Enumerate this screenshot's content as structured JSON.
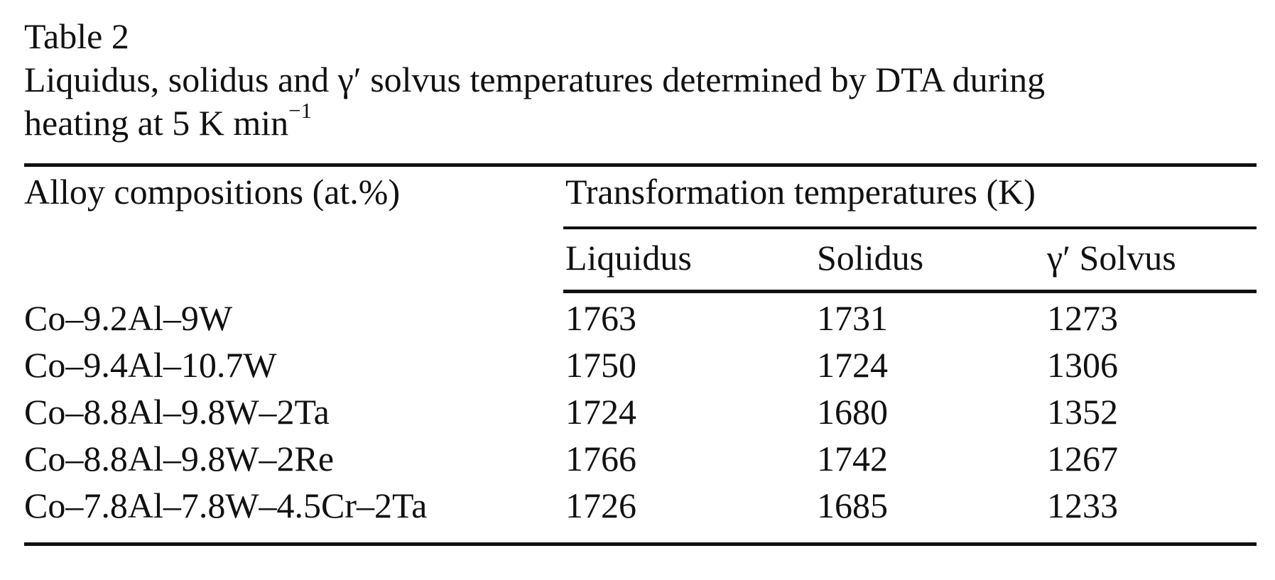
{
  "table": {
    "label": "Table 2",
    "caption_line1": "Liquidus, solidus and γ′ solvus temperatures determined by DTA during",
    "caption_line2": "heating at 5 K min",
    "caption_sup": "−1",
    "headers": {
      "alloy": "Alloy compositions (at.%)",
      "group": "Transformation temperatures (K)",
      "liquidus": "Liquidus",
      "solidus": "Solidus",
      "solvus": "γ′ Solvus"
    },
    "rows": [
      {
        "alloy": "Co–9.2Al–9W",
        "liquidus": "1763",
        "solidus": "1731",
        "solvus": "1273"
      },
      {
        "alloy": "Co–9.4Al–10.7W",
        "liquidus": "1750",
        "solidus": "1724",
        "solvus": "1306"
      },
      {
        "alloy": "Co–8.8Al–9.8W–2Ta",
        "liquidus": "1724",
        "solidus": "1680",
        "solvus": "1352"
      },
      {
        "alloy": "Co–8.8Al–9.8W–2Re",
        "liquidus": "1766",
        "solidus": "1742",
        "solvus": "1267"
      },
      {
        "alloy": "Co–7.8Al–7.8W–4.5Cr–2Ta",
        "liquidus": "1726",
        "solidus": "1685",
        "solvus": "1233"
      }
    ]
  }
}
